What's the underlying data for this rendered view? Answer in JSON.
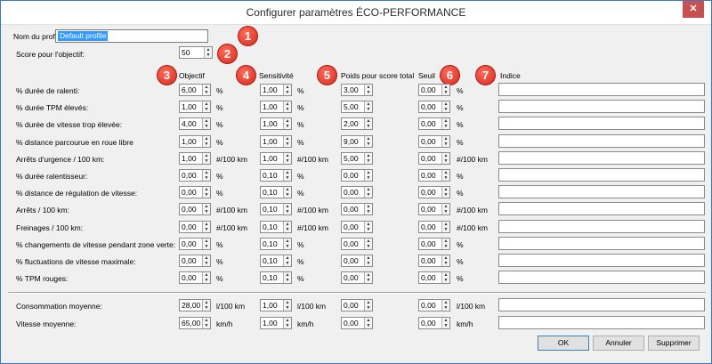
{
  "window": {
    "title": "Configurer paramètres ÉCO-PERFORMANCE",
    "close_glyph": "✕"
  },
  "profile": {
    "label": "Nom du profil:",
    "value": "Default profile"
  },
  "score": {
    "label": "Score pour l'objectif:",
    "value": "50"
  },
  "columns": {
    "objectif": "Objectif",
    "sensitivite": "Sensitivité",
    "poids": "Poids pour score total",
    "seuil": "Seuil",
    "indice": "Indice"
  },
  "badges": [
    "1",
    "2",
    "3",
    "4",
    "5",
    "6",
    "7"
  ],
  "rows": [
    {
      "label": "% durée de ralenti:",
      "objectif": "6,00",
      "obj_unit": "%",
      "sens": "1,00",
      "sens_unit": "%",
      "poids": "3,00",
      "seuil": "0,00",
      "seuil_unit": "%",
      "indice": ""
    },
    {
      "label": "% durée TPM élevés:",
      "objectif": "1,00",
      "obj_unit": "%",
      "sens": "1,00",
      "sens_unit": "%",
      "poids": "5,00",
      "seuil": "0,00",
      "seuil_unit": "%",
      "indice": ""
    },
    {
      "label": "% durée de vitesse trop élevée:",
      "objectif": "4,00",
      "obj_unit": "%",
      "sens": "1,00",
      "sens_unit": "%",
      "poids": "2,00",
      "seuil": "0,00",
      "seuil_unit": "%",
      "indice": ""
    },
    {
      "label": "% distance parcourue en roue libre",
      "objectif": "1,00",
      "obj_unit": "%",
      "sens": "1,00",
      "sens_unit": "%",
      "poids": "9,00",
      "seuil": "0,00",
      "seuil_unit": "%",
      "indice": ""
    },
    {
      "label": "Arrêts d'urgence / 100 km:",
      "objectif": "1,00",
      "obj_unit": "#/100 km",
      "sens": "1,00",
      "sens_unit": "#/100 km",
      "poids": "5,00",
      "seuil": "0,00",
      "seuil_unit": "#/100 km",
      "indice": ""
    },
    {
      "label": "% durée ralentisseur:",
      "objectif": "0,00",
      "obj_unit": "%",
      "sens": "0,10",
      "sens_unit": "%",
      "poids": "0,00",
      "seuil": "0,00",
      "seuil_unit": "%",
      "indice": ""
    },
    {
      "label": "% distance de régulation de vitesse:",
      "objectif": "0,00",
      "obj_unit": "%",
      "sens": "0,10",
      "sens_unit": "%",
      "poids": "0,00",
      "seuil": "0,00",
      "seuil_unit": "%",
      "indice": ""
    },
    {
      "label": "Arrêts / 100 km:",
      "objectif": "0,00",
      "obj_unit": "#/100 km",
      "sens": "0,10",
      "sens_unit": "#/100 km",
      "poids": "0,00",
      "seuil": "0,00",
      "seuil_unit": "#/100 km",
      "indice": ""
    },
    {
      "label": "Freinages / 100 km:",
      "objectif": "0,00",
      "obj_unit": "#/100 km",
      "sens": "0,10",
      "sens_unit": "#/100 km",
      "poids": "0,00",
      "seuil": "0,00",
      "seuil_unit": "#/100 km",
      "indice": ""
    },
    {
      "label": "% changements de vitesse pendant zone verte:",
      "objectif": "0,00",
      "obj_unit": "%",
      "sens": "0,10",
      "sens_unit": "%",
      "poids": "0,00",
      "seuil": "0,00",
      "seuil_unit": "%",
      "indice": ""
    },
    {
      "label": "% fluctuations de vitesse maximale:",
      "objectif": "0,00",
      "obj_unit": "%",
      "sens": "0,10",
      "sens_unit": "%",
      "poids": "0,00",
      "seuil": "0,00",
      "seuil_unit": "%",
      "indice": ""
    },
    {
      "label": "% TPM rouges:",
      "objectif": "0,00",
      "obj_unit": "%",
      "sens": "0,10",
      "sens_unit": "%",
      "poids": "0,00",
      "seuil": "0,00",
      "seuil_unit": "%",
      "indice": ""
    }
  ],
  "rows_bottom": [
    {
      "label": "Consommation moyenne:",
      "objectif": "28,00",
      "obj_unit": "l/100 km",
      "sens": "1,00",
      "sens_unit": "l/100 km",
      "poids": "0,00",
      "seuil": "0,00",
      "seuil_unit": "l/100 km",
      "indice": ""
    },
    {
      "label": "Vitesse moyenne:",
      "objectif": "65,00",
      "obj_unit": "km/h",
      "sens": "1,00",
      "sens_unit": "km/h",
      "poids": "0,00",
      "seuil": "0,00",
      "seuil_unit": "km/h",
      "indice": ""
    }
  ],
  "buttons": {
    "ok": "OK",
    "cancel": "Annuler",
    "delete": "Supprimer"
  },
  "colors": {
    "badge": "#e0392b",
    "selection": "#3399ff",
    "close": "#c75050"
  }
}
